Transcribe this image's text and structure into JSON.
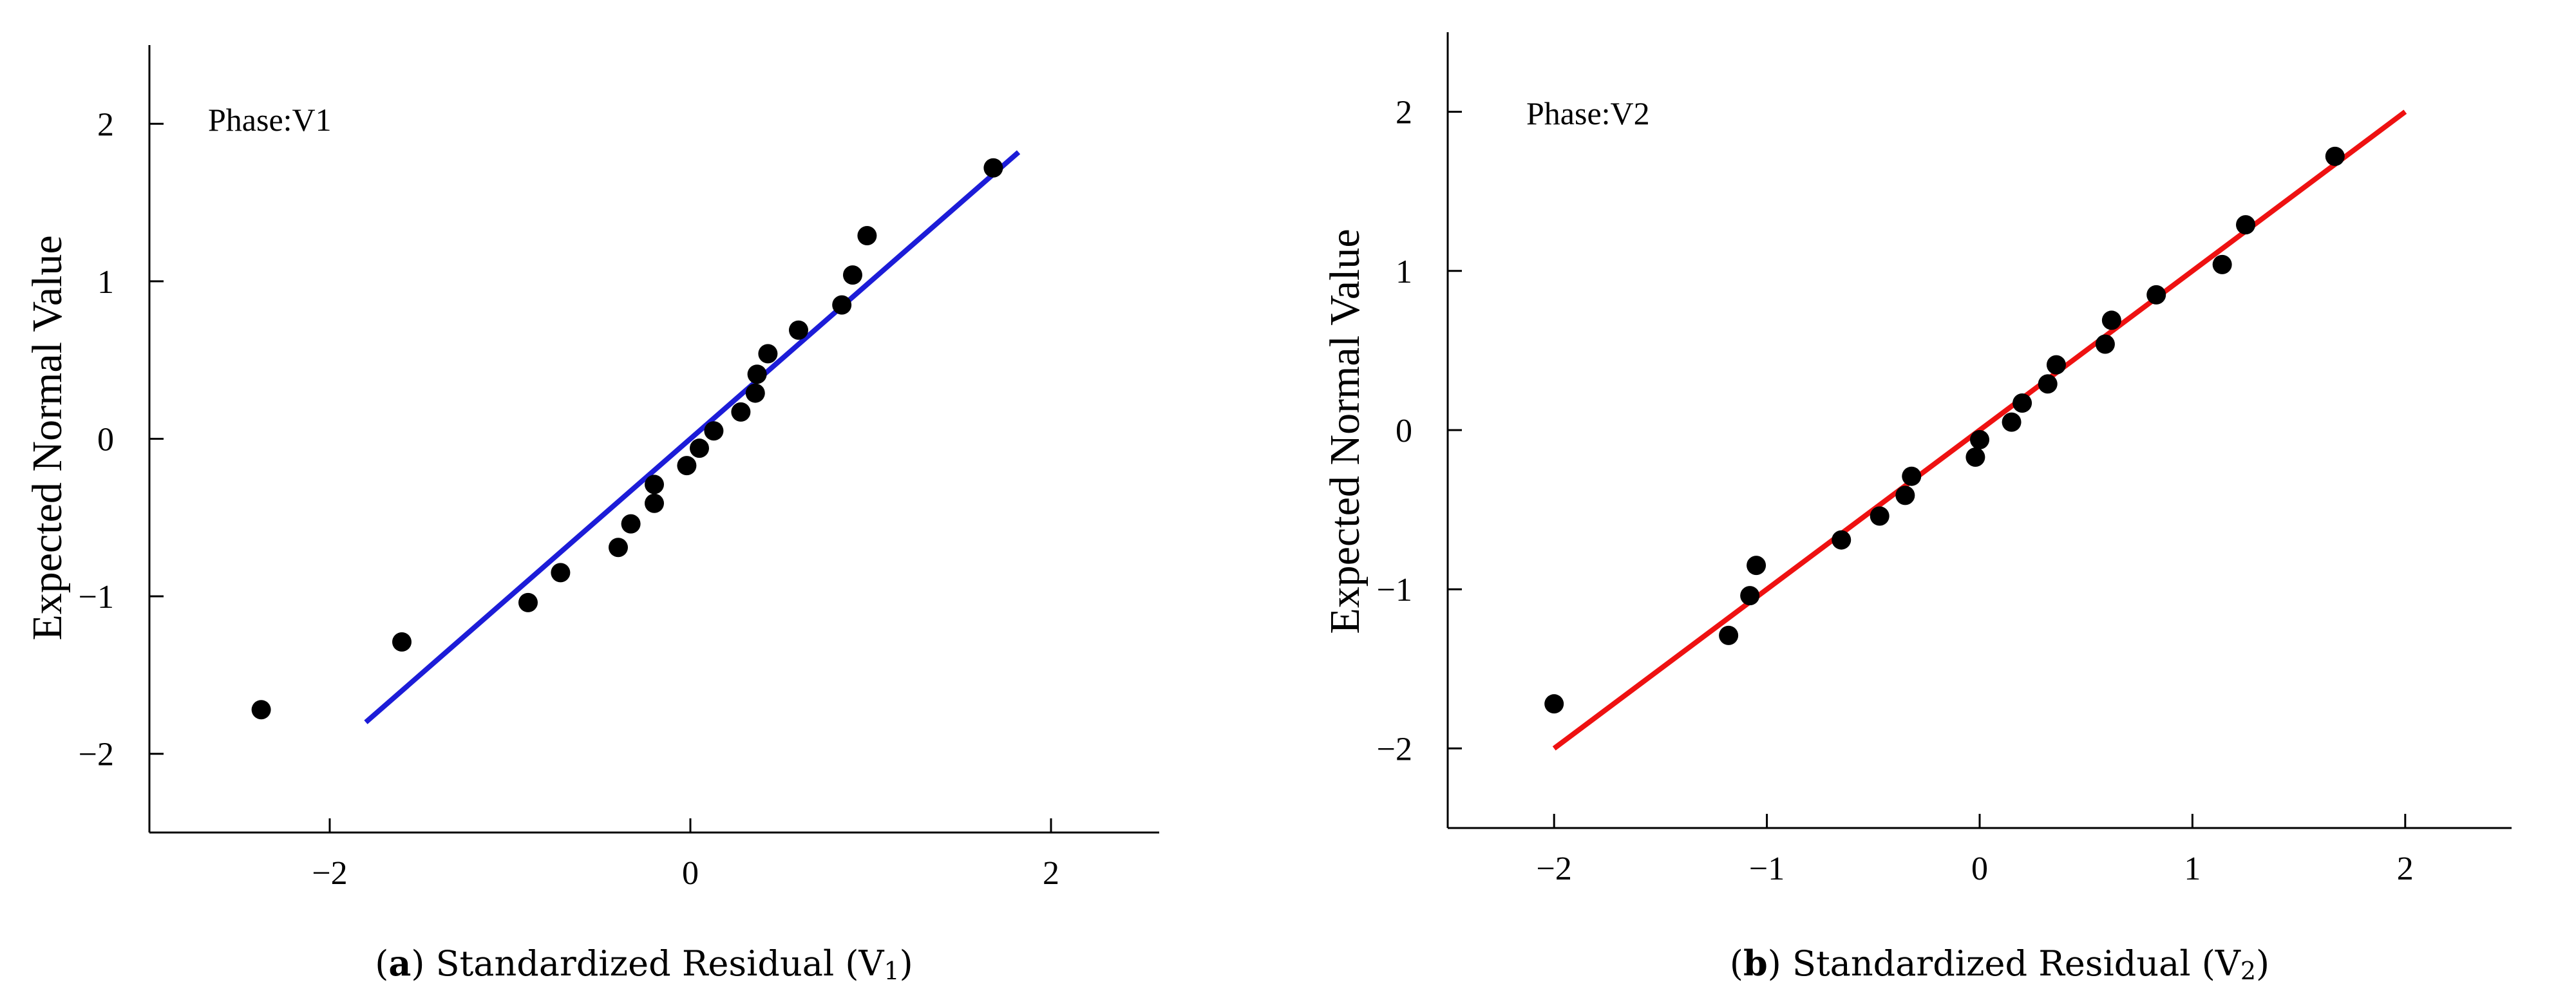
{
  "chart_data": [
    {
      "type": "scatter",
      "panel_id": "a",
      "annotation": "Phase:V1",
      "ylabel": "Expected Normal Value",
      "caption": {
        "letter": "a",
        "text": "Standardized Residual (V",
        "subscript": "1",
        "close": ")"
      },
      "xlim": [
        -3.0,
        2.6
      ],
      "ylim": [
        -2.5,
        2.5
      ],
      "xticks": [
        -2,
        0,
        2
      ],
      "xtick_labels": [
        "−2",
        "0",
        "2"
      ],
      "yticks": [
        -2,
        -1,
        0,
        1,
        2
      ],
      "ytick_labels": [
        "−2",
        "−1",
        "0",
        "1",
        "2"
      ],
      "points": {
        "x": [
          -2.38,
          -1.6,
          -0.9,
          -0.72,
          -0.4,
          -0.33,
          -0.2,
          -0.2,
          -0.02,
          0.05,
          0.13,
          0.28,
          0.36,
          0.37,
          0.43,
          0.6,
          0.84,
          0.9,
          0.98,
          1.68
        ],
        "y": [
          -1.72,
          -1.29,
          -1.04,
          -0.85,
          -0.69,
          -0.54,
          -0.41,
          -0.29,
          -0.17,
          -0.06,
          0.05,
          0.17,
          0.29,
          0.41,
          0.54,
          0.69,
          0.85,
          1.04,
          1.29,
          1.72
        ]
      },
      "fit_line": {
        "x": [
          -1.8,
          1.82
        ],
        "y": [
          -1.8,
          1.82
        ],
        "color": "#1c1cd8"
      },
      "point_color": "#000000"
    },
    {
      "type": "scatter",
      "panel_id": "b",
      "annotation": "Phase:V2",
      "ylabel": "Expected Normal Value",
      "caption": {
        "letter": "b",
        "text": "Standardized Residual (V",
        "subscript": "2",
        "close": ")"
      },
      "xlim": [
        -2.5,
        2.5
      ],
      "ylim": [
        -2.5,
        2.5
      ],
      "xticks": [
        -2,
        -1,
        0,
        1,
        2
      ],
      "xtick_labels": [
        "−2",
        "−1",
        "0",
        "1",
        "2"
      ],
      "yticks": [
        -2,
        -1,
        0,
        1,
        2
      ],
      "ytick_labels": [
        "−2",
        "−1",
        "0",
        "1",
        "2"
      ],
      "points": {
        "x": [
          -2.0,
          -1.18,
          -1.08,
          -1.05,
          -0.65,
          -0.47,
          -0.35,
          -0.32,
          -0.02,
          0.0,
          0.15,
          0.2,
          0.32,
          0.36,
          0.59,
          0.62,
          0.83,
          1.14,
          1.25,
          1.67
        ],
        "y": [
          -1.72,
          -1.29,
          -1.04,
          -0.85,
          -0.69,
          -0.54,
          -0.41,
          -0.29,
          -0.17,
          -0.06,
          0.05,
          0.17,
          0.29,
          0.41,
          0.54,
          0.69,
          0.85,
          1.04,
          1.29,
          1.72
        ]
      },
      "fit_line": {
        "x": [
          -2.0,
          2.0
        ],
        "y": [
          -2.0,
          2.0
        ],
        "color": "#ee1111"
      },
      "point_color": "#000000"
    }
  ]
}
